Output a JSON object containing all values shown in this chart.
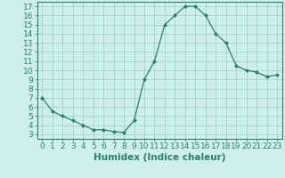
{
  "x": [
    0,
    1,
    2,
    3,
    4,
    5,
    6,
    7,
    8,
    9,
    10,
    11,
    12,
    13,
    14,
    15,
    16,
    17,
    18,
    19,
    20,
    21,
    22,
    23
  ],
  "y": [
    7,
    5.5,
    5,
    4.5,
    4,
    3.5,
    3.5,
    3.3,
    3.2,
    4.5,
    9,
    11,
    15,
    16,
    17,
    17,
    16,
    14,
    13,
    10.5,
    10,
    9.8,
    9.3,
    9.5
  ],
  "line_color": "#2e7d6e",
  "marker_color": "#2e7d6e",
  "bg_color": "#cef0ec",
  "grid_color": "#9ecec8",
  "xlabel": "Humidex (Indice chaleur)",
  "xlim": [
    -0.5,
    23.5
  ],
  "ylim": [
    2.5,
    17.5
  ],
  "yticks": [
    3,
    4,
    5,
    6,
    7,
    8,
    9,
    10,
    11,
    12,
    13,
    14,
    15,
    16,
    17
  ],
  "xticks": [
    0,
    1,
    2,
    3,
    4,
    5,
    6,
    7,
    8,
    9,
    10,
    11,
    12,
    13,
    14,
    15,
    16,
    17,
    18,
    19,
    20,
    21,
    22,
    23
  ],
  "tick_font_size": 6.5,
  "label_font_size": 7.5
}
